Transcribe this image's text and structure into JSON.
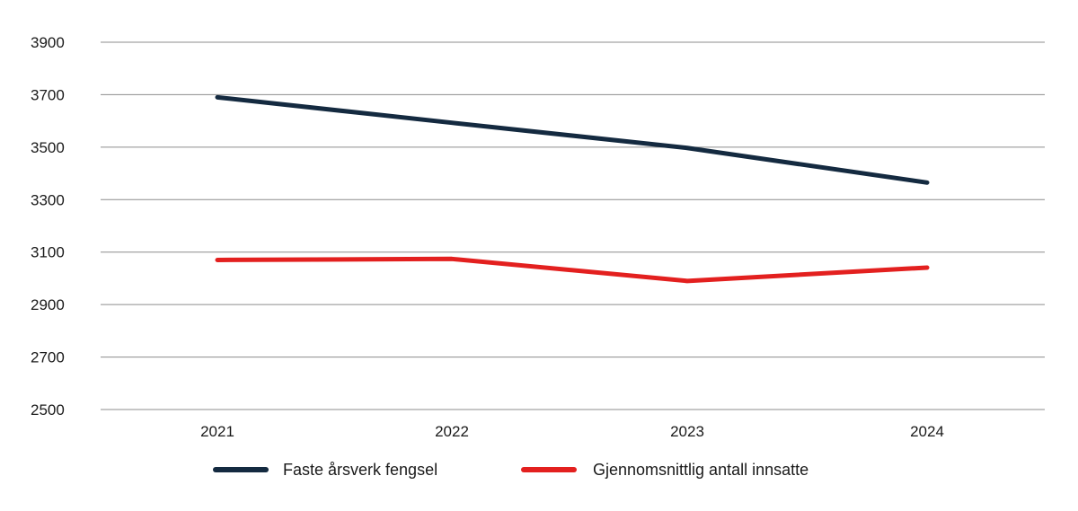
{
  "chart_data": {
    "type": "line",
    "title": "",
    "xlabel": "",
    "ylabel": "",
    "categories": [
      "2021",
      "2022",
      "2023",
      "2024"
    ],
    "ylim": [
      2500,
      3900
    ],
    "yticks": [
      2500,
      2700,
      2900,
      3100,
      3300,
      3500,
      3700,
      3900
    ],
    "grid": true,
    "legend_position": "bottom",
    "series": [
      {
        "name": "Faste årsverk fengsel",
        "color": "#142a40",
        "values": [
          3690,
          3593,
          3497,
          3365
        ]
      },
      {
        "name": "Gjennomsnittlig antall innsatte",
        "color": "#e3201f",
        "values": [
          3070,
          3074,
          2990,
          3041
        ]
      }
    ]
  }
}
